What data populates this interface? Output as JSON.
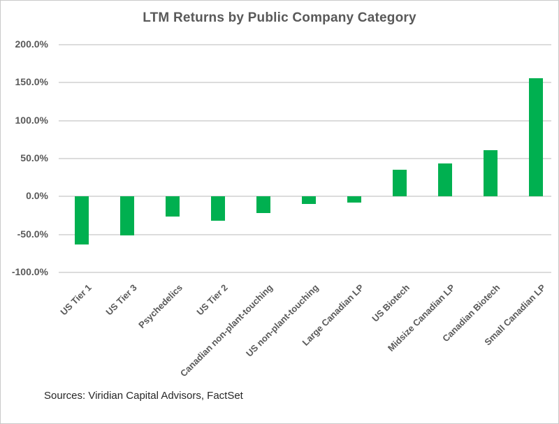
{
  "chart_data": {
    "type": "bar",
    "title": "LTM Returns by Public Company Category",
    "categories": [
      "US Tier 1",
      "US Tier 3",
      "Psychedelics",
      "US Tier 2",
      "Canadian non-plant-touching",
      "US non-plant-touching",
      "Large Canadian LP",
      "US Biotech",
      "Midsize Canadian LP",
      "Canadian Biotech",
      "Small Canadian LP"
    ],
    "values": [
      -63,
      -51,
      -26,
      -32,
      -22,
      -10,
      -8,
      35,
      44,
      61,
      156
    ],
    "value_unit": "%",
    "yticks": [
      {
        "label": "200.0%",
        "value": 200
      },
      {
        "label": "150.0%",
        "value": 150
      },
      {
        "label": "100.0%",
        "value": 100
      },
      {
        "label": "50.0%",
        "value": 50
      },
      {
        "label": "0.0%",
        "value": 0
      },
      {
        "label": "-50.0%",
        "value": -50
      },
      {
        "label": "-100.0%",
        "value": -100
      }
    ],
    "ylim": [
      -100,
      200
    ],
    "grid": "horizontal",
    "legend": "none",
    "bar_color": "#00B050",
    "source": "Sources: Viridian Capital Advisors, FactSet"
  }
}
